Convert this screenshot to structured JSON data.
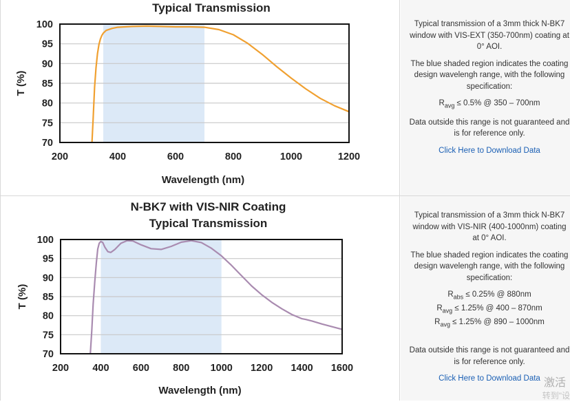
{
  "charts": [
    {
      "title_lines": [
        "Typical Transmission"
      ],
      "ylabel": "T (%)",
      "xlabel": "Wavelength (nm)",
      "description": "Typical transmission of a 3mm thick N-BK7 window with VIS-EXT (350-700nm) coating at 0° AOI.",
      "shaded_note": "The blue shaded region indicates the coating design wavelengh range, with the following specification:",
      "specs": [
        {
          "sym": "R",
          "sub": "avg",
          "rest": " ≤ 0.5% @ 350 – 700nm"
        }
      ],
      "outside_note": "Data outside this range is not guaranteed and is for reference only.",
      "download_label": "Click Here to Download Data"
    },
    {
      "title_lines": [
        "N-BK7 with VIS-NIR Coating",
        "Typical Transmission"
      ],
      "ylabel": "T (%)",
      "xlabel": "Wavelength (nm)",
      "description": "Typical transmission of a 3mm thick N-BK7 window with VIS-NIR (400-1000nm) coating at 0° AOI.",
      "shaded_note": "The blue shaded region indicates the coating design wavelengh range, with the following specification:",
      "specs": [
        {
          "sym": "R",
          "sub": "abs",
          "rest": " ≤ 0.25% @ 880nm"
        },
        {
          "sym": "R",
          "sub": "avg",
          "rest": " ≤ 1.25% @ 400 – 870nm"
        },
        {
          "sym": "R",
          "sub": "avg",
          "rest": " ≤ 1.25% @ 890 – 1000nm"
        }
      ],
      "outside_note": "Data outside this range is not guaranteed and is for reference only.",
      "download_label": "Click Here to Download Data"
    }
  ],
  "watermark": {
    "line1": "激活",
    "line2": "转到\"设"
  },
  "chart_data": [
    {
      "type": "line",
      "title": "Typical Transmission",
      "xlabel": "Wavelength (nm)",
      "ylabel": "T (%)",
      "xlim": [
        200,
        1200
      ],
      "ylim": [
        70,
        100
      ],
      "xticks": [
        200,
        400,
        600,
        800,
        1000,
        1200
      ],
      "yticks": [
        70,
        75,
        80,
        85,
        90,
        95,
        100
      ],
      "shaded_range": [
        350,
        700
      ],
      "shade_color": "#dce9f7",
      "line_color": "#f0a030",
      "grid": true,
      "series": [
        {
          "name": "VIS-EXT",
          "x": [
            311,
            315,
            320,
            325,
            330,
            335,
            340,
            345,
            350,
            360,
            380,
            400,
            450,
            500,
            550,
            600,
            650,
            700,
            750,
            800,
            850,
            900,
            950,
            1000,
            1050,
            1100,
            1150,
            1200
          ],
          "y": [
            70,
            76,
            84,
            89,
            92.5,
            94.8,
            96.2,
            97.1,
            97.7,
            98.4,
            98.9,
            99.2,
            99.4,
            99.5,
            99.4,
            99.3,
            99.3,
            99.2,
            98.6,
            97.3,
            95.1,
            92.3,
            89.2,
            86.3,
            83.6,
            81.2,
            79.3,
            77.8
          ]
        }
      ]
    },
    {
      "type": "line",
      "title": "N-BK7 with VIS-NIR Coating Typical Transmission",
      "xlabel": "Wavelength (nm)",
      "ylabel": "T (%)",
      "xlim": [
        200,
        1600
      ],
      "ylim": [
        70,
        100
      ],
      "xticks": [
        200,
        400,
        600,
        800,
        1000,
        1200,
        1400,
        1600
      ],
      "yticks": [
        70,
        75,
        80,
        85,
        90,
        95,
        100
      ],
      "shaded_range": [
        400,
        1000
      ],
      "shade_color": "#dce9f7",
      "line_color": "#a98bb0",
      "grid": true,
      "series": [
        {
          "name": "VIS-NIR",
          "x": [
            348,
            355,
            362,
            370,
            378,
            385,
            392,
            400,
            410,
            420,
            435,
            450,
            470,
            500,
            530,
            560,
            600,
            650,
            700,
            750,
            800,
            850,
            900,
            950,
            1000,
            1050,
            1100,
            1150,
            1200,
            1250,
            1300,
            1350,
            1400,
            1420,
            1450,
            1500,
            1550,
            1600
          ],
          "y": [
            70,
            76,
            83,
            89,
            94,
            97.5,
            99,
            99.5,
            99.2,
            98,
            96.8,
            96.6,
            97.4,
            99,
            99.7,
            99.6,
            98.6,
            97.6,
            97.4,
            98.2,
            99.3,
            99.7,
            99.2,
            97.7,
            95.7,
            93.2,
            90.5,
            87.8,
            85.5,
            83.5,
            81.8,
            80.3,
            79.2,
            79.0,
            78.6,
            77.8,
            77.1,
            76.4
          ]
        }
      ]
    }
  ]
}
